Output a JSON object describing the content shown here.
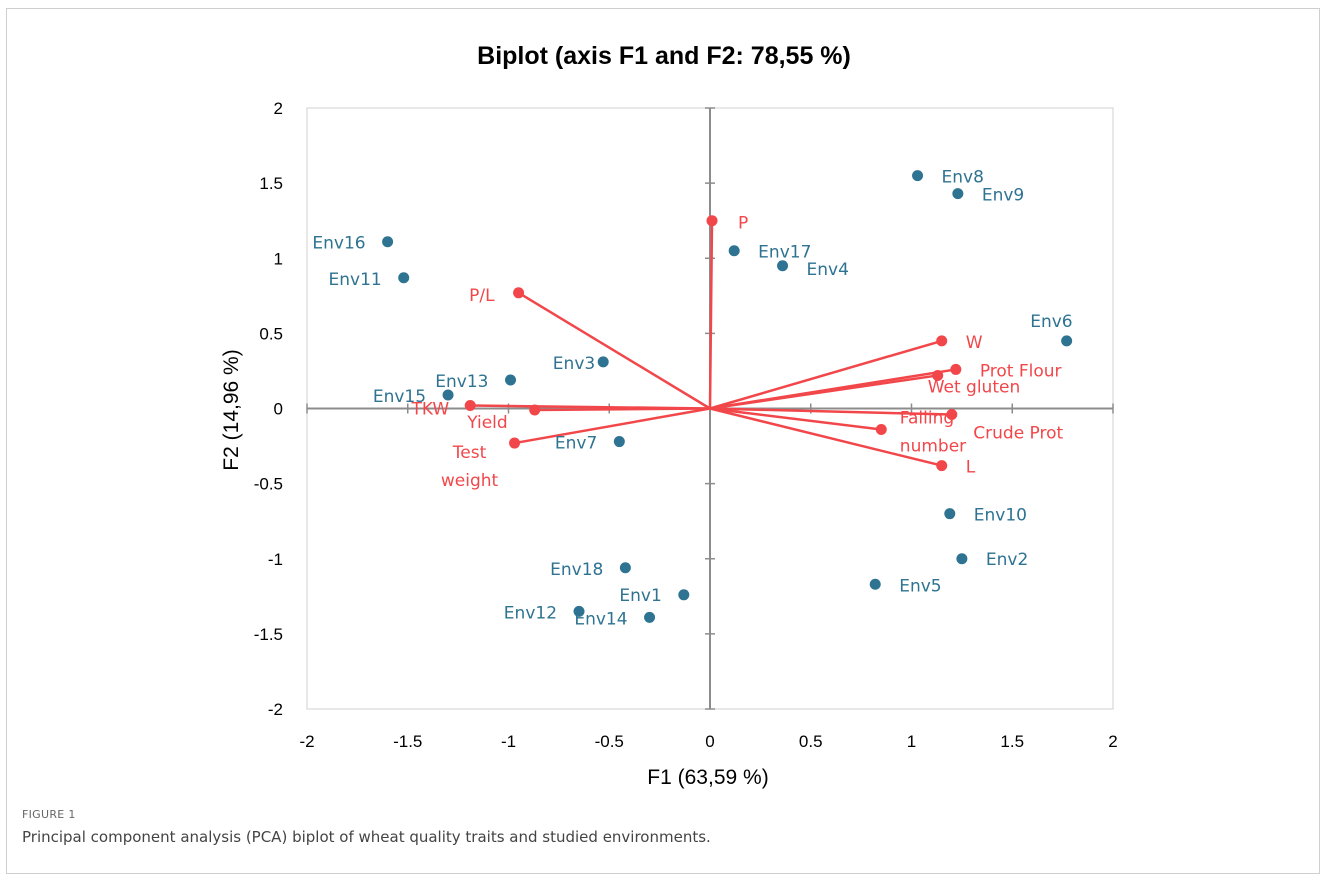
{
  "figure": {
    "label": "FIGURE 1",
    "caption": "Principal component analysis (PCA) biplot of wheat quality traits and studied environments."
  },
  "chart_data": {
    "type": "scatter",
    "title": "Biplot (axis F1 and F2: 78,55 %)",
    "xlabel": "F1 (63,59 %)",
    "ylabel": "F2 (14,96 %)",
    "xlim": [
      -2,
      2
    ],
    "ylim": [
      -2,
      2
    ],
    "xticks": [
      "-2",
      "-1.5",
      "-1",
      "-0.5",
      "0",
      "0.5",
      "1",
      "1.5",
      "2"
    ],
    "yticks": [
      "2",
      "1.5",
      "1",
      "0.5",
      "0",
      "-0.5",
      "-1",
      "-1.5",
      "-2"
    ],
    "grid": false,
    "colors": {
      "environments": "#2e7391",
      "traits": "#f2474a"
    },
    "environments": [
      {
        "name": "Env1",
        "x": -0.13,
        "y": -1.24
      },
      {
        "name": "Env2",
        "x": 1.25,
        "y": -1.0
      },
      {
        "name": "Env3",
        "x": -0.53,
        "y": 0.31
      },
      {
        "name": "Env4",
        "x": 0.36,
        "y": 0.95
      },
      {
        "name": "Env5",
        "x": 0.82,
        "y": -1.17
      },
      {
        "name": "Env6",
        "x": 1.77,
        "y": 0.45
      },
      {
        "name": "Env7",
        "x": -0.45,
        "y": -0.22
      },
      {
        "name": "Env8",
        "x": 1.03,
        "y": 1.55
      },
      {
        "name": "Env9",
        "x": 1.23,
        "y": 1.43
      },
      {
        "name": "Env10",
        "x": 1.19,
        "y": -0.7
      },
      {
        "name": "Env11",
        "x": -1.52,
        "y": 0.87
      },
      {
        "name": "Env12",
        "x": -0.65,
        "y": -1.35
      },
      {
        "name": "Env13",
        "x": -0.99,
        "y": 0.19
      },
      {
        "name": "Env14",
        "x": -0.3,
        "y": -1.39
      },
      {
        "name": "Env15",
        "x": -1.3,
        "y": 0.09
      },
      {
        "name": "Env16",
        "x": -1.6,
        "y": 1.11
      },
      {
        "name": "Env17",
        "x": 0.12,
        "y": 1.05
      },
      {
        "name": "Env18",
        "x": -0.42,
        "y": -1.06
      }
    ],
    "traits": [
      {
        "name": "P",
        "x": 0.01,
        "y": 1.25
      },
      {
        "name": "P/L",
        "x": -0.95,
        "y": 0.77
      },
      {
        "name": "W",
        "x": 1.15,
        "y": 0.45
      },
      {
        "name": "Prot Flour",
        "x": 1.22,
        "y": 0.26
      },
      {
        "name": "Wet gluten",
        "x": 1.13,
        "y": 0.22
      },
      {
        "name": "Falling number",
        "x": 1.2,
        "y": -0.04
      },
      {
        "name": "Crude Prot",
        "x": 0.85,
        "y": -0.14
      },
      {
        "name": "L",
        "x": 1.15,
        "y": -0.38
      },
      {
        "name": "TKW",
        "x": -1.19,
        "y": 0.02
      },
      {
        "name": "Yield",
        "x": -0.87,
        "y": -0.01
      },
      {
        "name": "Test weight",
        "x": -0.97,
        "y": -0.23
      }
    ]
  }
}
